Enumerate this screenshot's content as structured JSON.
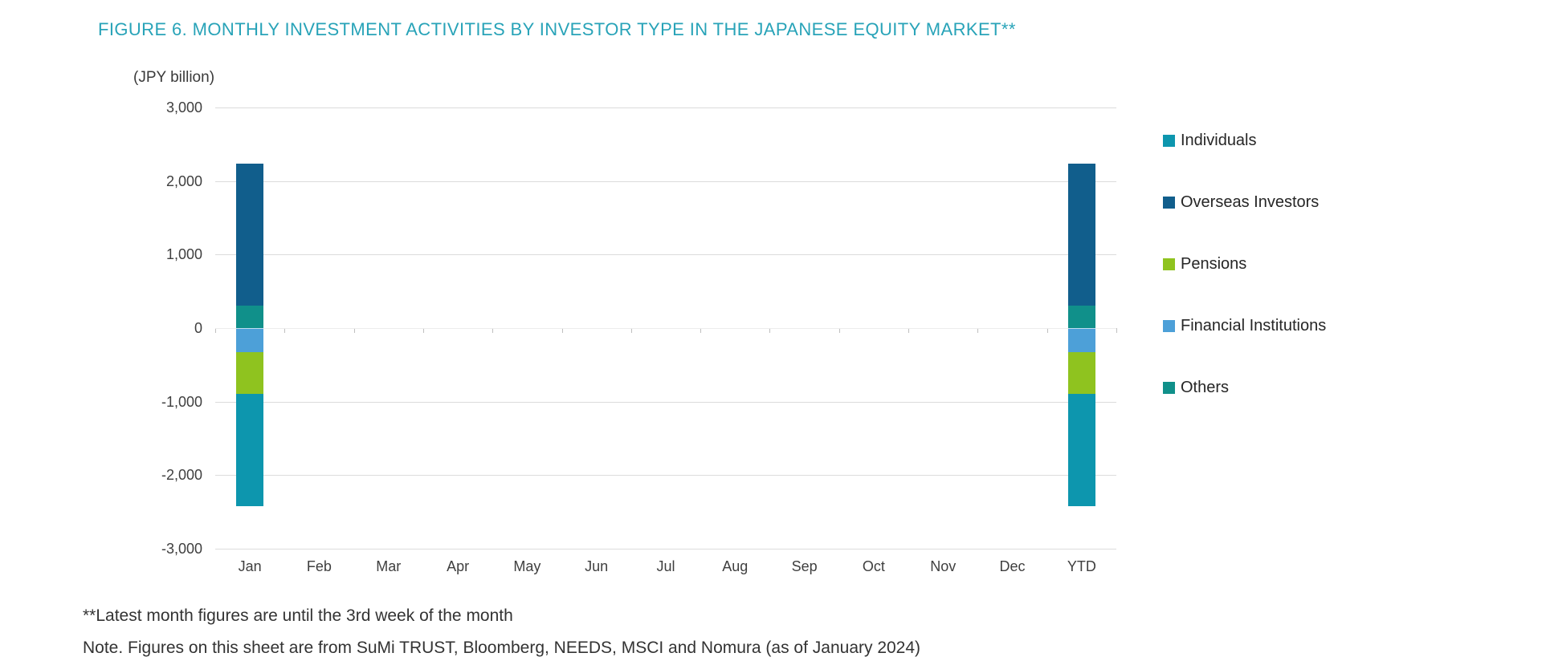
{
  "footnotes": {
    "line1": "**Latest month figures are until the 3rd week of the month",
    "line2": "Note. Figures on this sheet are from SuMi TRUST, Bloomberg, NEEDS, MSCI and Nomura (as of January 2024)"
  },
  "colors": {
    "title_accent": "#28A3B8",
    "gridline": "#DCDCDC",
    "axis_text": "#3F3F3F"
  },
  "chart_data": {
    "type": "bar",
    "subtype": "stacked",
    "title": "FIGURE 6. MONTHLY INVESTMENT ACTIVITIES BY INVESTOR TYPE IN THE JAPANESE EQUITY MARKET**",
    "unit_label": "(JPY billion)",
    "categories": [
      "Jan",
      "Feb",
      "Mar",
      "Apr",
      "May",
      "Jun",
      "Jul",
      "Aug",
      "Sep",
      "Oct",
      "Nov",
      "Dec",
      "YTD"
    ],
    "ylim": [
      -3000,
      3000
    ],
    "grid": "horizontal",
    "legend_position": "right",
    "yticks": [
      {
        "label": "3,000",
        "value": 3000
      },
      {
        "label": "2,000",
        "value": 2000
      },
      {
        "label": "1,000",
        "value": 1000
      },
      {
        "label": "0",
        "value": 0
      },
      {
        "label": "-1,000",
        "value": -1000
      },
      {
        "label": "-2,000",
        "value": -2000
      },
      {
        "label": "-3,000",
        "value": -3000
      }
    ],
    "series": [
      {
        "name": "Individuals",
        "color": "#0D96AE",
        "values": [
          -1530,
          null,
          null,
          null,
          null,
          null,
          null,
          null,
          null,
          null,
          null,
          null,
          -1530
        ]
      },
      {
        "name": "Overseas Investors",
        "color": "#115E8C",
        "values": [
          1930,
          null,
          null,
          null,
          null,
          null,
          null,
          null,
          null,
          null,
          null,
          null,
          1930
        ]
      },
      {
        "name": "Pensions",
        "color": "#8FC31F",
        "values": [
          -560,
          null,
          null,
          null,
          null,
          null,
          null,
          null,
          null,
          null,
          null,
          null,
          -560
        ]
      },
      {
        "name": "Financial Institutions",
        "color": "#4DA0D8",
        "values": [
          -330,
          null,
          null,
          null,
          null,
          null,
          null,
          null,
          null,
          null,
          null,
          null,
          -330
        ]
      },
      {
        "name": "Others",
        "color": "#10908A",
        "values": [
          310,
          null,
          null,
          null,
          null,
          null,
          null,
          null,
          null,
          null,
          null,
          null,
          310
        ]
      }
    ],
    "stack_order_from_axis": [
      "Others",
      "Overseas Investors",
      "Financial Institutions",
      "Pensions",
      "Individuals"
    ]
  }
}
